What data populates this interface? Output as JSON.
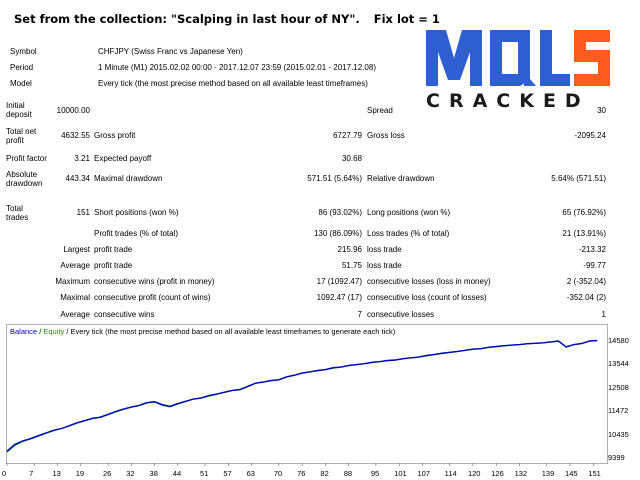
{
  "header": {
    "title": "Set from the collection: \"Scalping in last hour of NY\".",
    "fix_lot": "Fix lot = 1"
  },
  "logo": {
    "main": "MQL5",
    "sub": "CRACKED",
    "colors": {
      "blue": "#2f5fd0",
      "orange": "#ff5a1f"
    }
  },
  "settings": {
    "symbol_label": "Symbol",
    "symbol_value": "CHFJPY (Swiss Franc vs Japanese Yen)",
    "period_label": "Period",
    "period_value": "1 Minute (M1) 2015.02.02 00:00 - 2017.12.07 23:59 (2015.02.01 - 2017.12.08)",
    "model_label": "Model",
    "model_value": "Every tick (the most precise method based on all available least timeframes)"
  },
  "stats": {
    "initial_deposit_label": "Initial deposit",
    "initial_deposit": "10000.00",
    "spread_label": "Spread",
    "spread": "30",
    "total_net_profit_label": "Total net profit",
    "total_net_profit": "4632.55",
    "gross_profit_label": "Gross profit",
    "gross_profit": "6727.79",
    "gross_loss_label": "Gross loss",
    "gross_loss": "-2095.24",
    "profit_factor_label": "Profit factor",
    "profit_factor": "3.21",
    "expected_payoff_label": "Expected payoff",
    "expected_payoff": "30.68",
    "absolute_drawdown_label": "Absolute drawdown",
    "absolute_drawdown": "443.34",
    "maximal_drawdown_label": "Maximal drawdown",
    "maximal_drawdown": "571.51 (5.64%)",
    "relative_drawdown_label": "Relative drawdown",
    "relative_drawdown": "5.64% (571.51)",
    "total_trades_label": "Total trades",
    "total_trades": "151",
    "short_positions_label": "Short positions (won %)",
    "short_positions": "86 (93.02%)",
    "long_positions_label": "Long positions (won %)",
    "long_positions": "65 (76.92%)",
    "profit_trades_label": "Profit trades (% of total)",
    "profit_trades": "130 (86.09%)",
    "loss_trades_label": "Loss trades (% of total)",
    "loss_trades": "21 (13.91%)",
    "largest_label": "Largest",
    "largest_profit_label": "profit trade",
    "largest_profit": "215.96",
    "largest_loss_label": "loss trade",
    "largest_loss": "-213.32",
    "average_label": "Average",
    "average_profit_label": "profit trade",
    "average_profit": "51.75",
    "average_loss_label": "loss trade",
    "average_loss": "-99.77",
    "maximum_label": "Maximum",
    "max_cons_wins_label": "consecutive wins (profit in money)",
    "max_cons_wins": "17 (1092.47)",
    "max_cons_losses_label": "consecutive losses (loss in money)",
    "max_cons_losses": "2 (-352.04)",
    "maximal_label": "Maximal",
    "maximal_cons_profit_label": "consecutive profit (count of wins)",
    "maximal_cons_profit": "1092.47 (17)",
    "maximal_cons_loss_label": "consecutive loss (count of losses)",
    "maximal_cons_loss": "-352.04 (2)",
    "average2_label": "Average",
    "avg_cons_wins_label": "consecutive wins",
    "avg_cons_wins": "7",
    "avg_cons_losses_label": "consecutive losses",
    "avg_cons_losses": "1"
  },
  "chart_legend": {
    "balance": "Balance",
    "sep": " / ",
    "equity": "Equity",
    "rest": " / Every tick (the most precise method based on all available least timeframes to generate each tick)"
  },
  "chart_data": {
    "type": "line",
    "x_ticks": [
      "0",
      "7",
      "13",
      "19",
      "26",
      "32",
      "38",
      "44",
      "51",
      "57",
      "63",
      "70",
      "76",
      "82",
      "88",
      "95",
      "101",
      "107",
      "114",
      "120",
      "126",
      "132",
      "139",
      "145",
      "151"
    ],
    "y_ticks": [
      "14580",
      "13544",
      "12508",
      "11472",
      "10435",
      "9399"
    ],
    "ylim": [
      9399,
      14780
    ],
    "xlim": [
      0,
      154
    ],
    "series": [
      {
        "name": "Balance",
        "color": "#0000c0",
        "x": [
          0,
          2,
          4,
          6,
          8,
          10,
          12,
          14,
          16,
          18,
          20,
          22,
          24,
          26,
          28,
          30,
          32,
          34,
          36,
          38,
          40,
          42,
          44,
          46,
          48,
          50,
          52,
          54,
          56,
          58,
          60,
          62,
          64,
          66,
          68,
          70,
          72,
          74,
          76,
          78,
          80,
          82,
          84,
          86,
          88,
          90,
          92,
          94,
          96,
          98,
          100,
          102,
          104,
          106,
          108,
          110,
          112,
          114,
          116,
          118,
          120,
          122,
          124,
          126,
          128,
          130,
          132,
          134,
          136,
          138,
          140,
          142,
          144,
          146,
          148,
          150,
          152
        ],
        "values": [
          9700,
          10000,
          10150,
          10250,
          10380,
          10500,
          10620,
          10700,
          10820,
          10950,
          11050,
          11150,
          11200,
          11320,
          11450,
          11560,
          11650,
          11720,
          11840,
          11880,
          11750,
          11680,
          11800,
          11900,
          12000,
          12050,
          12150,
          12220,
          12300,
          12380,
          12420,
          12560,
          12700,
          12750,
          12820,
          12850,
          12980,
          13050,
          13150,
          13200,
          13260,
          13300,
          13380,
          13410,
          13480,
          13520,
          13560,
          13620,
          13650,
          13700,
          13720,
          13780,
          13820,
          13850,
          13920,
          13960,
          14020,
          14060,
          14100,
          14150,
          14200,
          14220,
          14280,
          14320,
          14350,
          14380,
          14400,
          14440,
          14460,
          14480,
          14520,
          14560,
          14300,
          14400,
          14450,
          14560,
          14580
        ]
      },
      {
        "name": "Equity",
        "color": "#00a000",
        "x": [
          0,
          2,
          4,
          6,
          8,
          10,
          12,
          14,
          16,
          18,
          20,
          22,
          24,
          26,
          28,
          30,
          32,
          34,
          36,
          38,
          40,
          42,
          44,
          46,
          48,
          50,
          52,
          54,
          56,
          58,
          60,
          62,
          64,
          66,
          68,
          70,
          72,
          74,
          76,
          78,
          80,
          82,
          84,
          86,
          88,
          90,
          92,
          94,
          96,
          98,
          100,
          102,
          104,
          106,
          108,
          110,
          112,
          114,
          116,
          118,
          120,
          122,
          124,
          126,
          128,
          130,
          132,
          134,
          136,
          138,
          140,
          142,
          144,
          146,
          148,
          150,
          152
        ],
        "values": [
          9650,
          9950,
          10120,
          10230,
          10350,
          10480,
          10600,
          10690,
          10800,
          10930,
          11030,
          11130,
          11180,
          11300,
          11430,
          11540,
          11630,
          11700,
          11820,
          11860,
          11720,
          11650,
          11780,
          11880,
          11990,
          12030,
          12130,
          12200,
          12290,
          12370,
          12400,
          12540,
          12690,
          12740,
          12800,
          12840,
          12960,
          13040,
          13130,
          13190,
          13240,
          13290,
          13360,
          13400,
          13470,
          13510,
          13550,
          13600,
          13640,
          13690,
          13710,
          13770,
          13810,
          13840,
          13900,
          13950,
          14000,
          14050,
          14090,
          14140,
          14190,
          14210,
          14270,
          14300,
          14340,
          14370,
          14390,
          14430,
          14450,
          14470,
          14510,
          14540,
          14280,
          14390,
          14440,
          14550,
          14570
        ]
      }
    ],
    "grid": false
  }
}
